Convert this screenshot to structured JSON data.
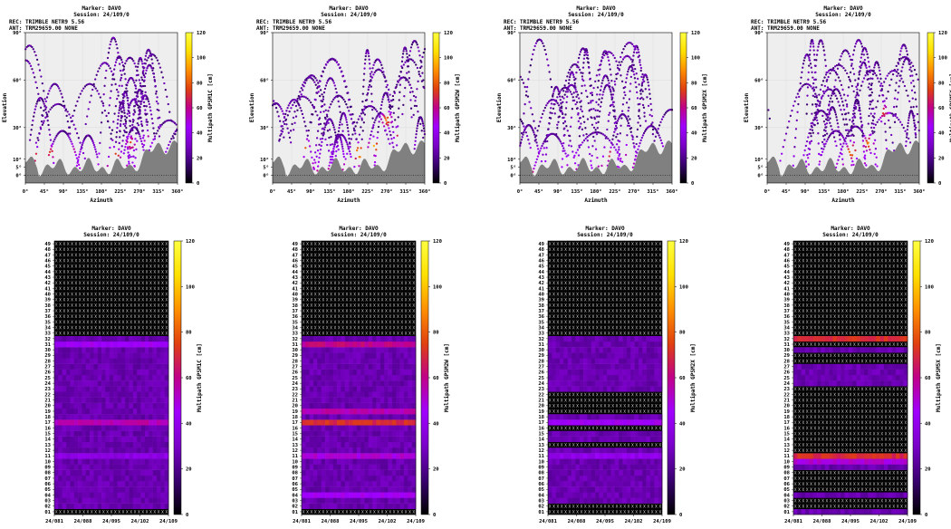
{
  "figure": {
    "skyplot_title_lines": [
      "Marker: DAVO",
      "Session: 24/109/0"
    ],
    "skyplot_info_lines": [
      "REC: TRIMBLE NETR9          5.56",
      "ANT: TRM29659.00       NONE"
    ],
    "timeplot_title_lines": [
      "Marker: DAVO",
      "Session: 24/109/0"
    ],
    "colorbar_ticks": [
      "0",
      "20",
      "40",
      "60",
      "80",
      "100",
      "120"
    ],
    "colors": {
      "plot_background": "#eeeeee",
      "terrain_mask": "#808080",
      "no_data_cell": "#000000",
      "palette": [
        "#000000",
        "#3a0070",
        "#7a00c8",
        "#a000ff",
        "#c0008a",
        "#e04010",
        "#ff9000",
        "#ffe000",
        "#ffff40"
      ]
    }
  },
  "chart_data": [
    {
      "type": "scatter",
      "plot": "skyplot",
      "signal": "GPSM1C",
      "xlabel": "Azimuth",
      "ylabel": "Elevation",
      "colorbar_label": "Multipath GPSM1C [cm]",
      "x_ticks": [
        "0°",
        "45°",
        "90°",
        "135°",
        "180°",
        "225°",
        "270°",
        "315°",
        "360°"
      ],
      "y_ticks": [
        "0°",
        "5°",
        "10°",
        "30°",
        "60°",
        "90°"
      ],
      "xlim": [
        0,
        360
      ],
      "ylim": [
        -5,
        90
      ],
      "colorbar_range": [
        0,
        120
      ],
      "hot_spots": [
        {
          "azimuth": 20,
          "elevation": 12,
          "value": 90
        },
        {
          "azimuth": 60,
          "elevation": 14,
          "value": 80
        },
        {
          "azimuth": 110,
          "elevation": 15,
          "value": 70
        },
        {
          "azimuth": 215,
          "elevation": 12,
          "value": 85
        },
        {
          "azimuth": 250,
          "elevation": 20,
          "value": 80
        },
        {
          "azimuth": 290,
          "elevation": 22,
          "value": 70
        }
      ]
    },
    {
      "type": "scatter",
      "plot": "skyplot",
      "signal": "GPSM2W",
      "xlabel": "Azimuth",
      "ylabel": "Elevation",
      "colorbar_label": "Multipath GPSM2W [cm]",
      "x_ticks": [
        "0°",
        "45°",
        "90°",
        "135°",
        "180°",
        "225°",
        "270°",
        "315°",
        "360°"
      ],
      "y_ticks": [
        "0°",
        "5°",
        "10°",
        "30°",
        "60°",
        "90°"
      ],
      "xlim": [
        0,
        360
      ],
      "ylim": [
        -5,
        90
      ],
      "colorbar_range": [
        0,
        120
      ],
      "hot_spots": [
        {
          "azimuth": 15,
          "elevation": 14,
          "value": 110
        },
        {
          "azimuth": 75,
          "elevation": 18,
          "value": 90
        },
        {
          "azimuth": 205,
          "elevation": 14,
          "value": 110
        },
        {
          "azimuth": 240,
          "elevation": 18,
          "value": 100
        },
        {
          "azimuth": 270,
          "elevation": 35,
          "value": 90
        },
        {
          "azimuth": 300,
          "elevation": 25,
          "value": 80
        }
      ]
    },
    {
      "type": "scatter",
      "plot": "skyplot",
      "signal": "GPSM2X",
      "xlabel": "Azimuth",
      "ylabel": "Elevation",
      "colorbar_label": "Multipath GPSM2X [cm]",
      "x_ticks": [
        "0°",
        "45°",
        "90°",
        "135°",
        "180°",
        "225°",
        "270°",
        "315°",
        "360°"
      ],
      "y_ticks": [
        "0°",
        "5°",
        "10°",
        "30°",
        "60°",
        "90°"
      ],
      "xlim": [
        0,
        360
      ],
      "ylim": [
        -5,
        90
      ],
      "colorbar_range": [
        0,
        120
      ],
      "hot_spots": [
        {
          "azimuth": 15,
          "elevation": 13,
          "value": 80
        },
        {
          "azimuth": 90,
          "elevation": 14,
          "value": 60
        },
        {
          "azimuth": 210,
          "elevation": 13,
          "value": 80
        },
        {
          "azimuth": 255,
          "elevation": 15,
          "value": 70
        }
      ]
    },
    {
      "type": "scatter",
      "plot": "skyplot",
      "signal": "GPSM5X",
      "xlabel": "Azimuth",
      "ylabel": "Elevation",
      "colorbar_label": "Multipath GPSM5X [cm]",
      "x_ticks": [
        "0°",
        "45°",
        "90°",
        "135°",
        "180°",
        "225°",
        "270°",
        "315°",
        "360°"
      ],
      "y_ticks": [
        "0°",
        "5°",
        "10°",
        "30°",
        "60°",
        "90°"
      ],
      "xlim": [
        0,
        360
      ],
      "ylim": [
        -5,
        90
      ],
      "colorbar_range": [
        0,
        120
      ],
      "hot_spots": [
        {
          "azimuth": 15,
          "elevation": 13,
          "value": 90
        },
        {
          "azimuth": 200,
          "elevation": 15,
          "value": 100
        },
        {
          "azimuth": 240,
          "elevation": 20,
          "value": 90
        },
        {
          "azimuth": 275,
          "elevation": 40,
          "value": 80
        }
      ]
    },
    {
      "type": "heatmap",
      "plot": "timeplot",
      "signal": "GPSM1C",
      "colorbar_label": "Multipath GPSM1C [cm]",
      "x_ticks": [
        "24/081",
        "24/088",
        "24/095",
        "24/102",
        "24/109"
      ],
      "y_ticks": [
        "01",
        "02",
        "03",
        "04",
        "05",
        "06",
        "07",
        "08",
        "09",
        "10",
        "11",
        "12",
        "13",
        "14",
        "15",
        "16",
        "17",
        "18",
        "19",
        "20",
        "21",
        "22",
        "23",
        "24",
        "25",
        "26",
        "27",
        "28",
        "29",
        "30",
        "31",
        "32",
        "33",
        "34",
        "35",
        "36",
        "37",
        "38",
        "39",
        "40",
        "41",
        "42",
        "43",
        "44",
        "45",
        "46",
        "47",
        "48",
        "49"
      ],
      "colorbar_range": [
        0,
        120
      ],
      "no_data_prns": [
        1,
        33,
        34,
        35,
        36,
        37,
        38,
        39,
        40,
        41,
        42,
        43,
        44,
        45,
        46,
        47,
        48,
        49
      ],
      "prn_levels": {
        "17": 55,
        "31": 45,
        "11": 38
      }
    },
    {
      "type": "heatmap",
      "plot": "timeplot",
      "signal": "GPSM2W",
      "colorbar_label": "Multipath GPSM2W [cm]",
      "x_ticks": [
        "24/081",
        "24/088",
        "24/095",
        "24/102",
        "24/109"
      ],
      "y_ticks": [
        "01",
        "02",
        "03",
        "04",
        "05",
        "06",
        "07",
        "08",
        "09",
        "10",
        "11",
        "12",
        "13",
        "14",
        "15",
        "16",
        "17",
        "18",
        "19",
        "20",
        "21",
        "22",
        "23",
        "24",
        "25",
        "26",
        "27",
        "28",
        "29",
        "30",
        "31",
        "32",
        "33",
        "34",
        "35",
        "36",
        "37",
        "38",
        "39",
        "40",
        "41",
        "42",
        "43",
        "44",
        "45",
        "46",
        "47",
        "48",
        "49"
      ],
      "colorbar_range": [
        0,
        120
      ],
      "no_data_prns": [
        1,
        33,
        34,
        35,
        36,
        37,
        38,
        39,
        40,
        41,
        42,
        43,
        44,
        45,
        46,
        47,
        48,
        49
      ],
      "prn_levels": {
        "17": 70,
        "19": 55,
        "31": 60,
        "11": 50,
        "4": 45
      }
    },
    {
      "type": "heatmap",
      "plot": "timeplot",
      "signal": "GPSM2X",
      "colorbar_label": "Multipath GPSM2X [cm]",
      "x_ticks": [
        "24/081",
        "24/088",
        "24/095",
        "24/102",
        "24/109"
      ],
      "y_ticks": [
        "01",
        "02",
        "03",
        "04",
        "05",
        "06",
        "07",
        "08",
        "09",
        "10",
        "11",
        "12",
        "13",
        "14",
        "15",
        "16",
        "17",
        "18",
        "19",
        "20",
        "21",
        "22",
        "23",
        "24",
        "25",
        "26",
        "27",
        "28",
        "29",
        "30",
        "31",
        "32",
        "33",
        "34",
        "35",
        "36",
        "37",
        "38",
        "39",
        "40",
        "41",
        "42",
        "43",
        "44",
        "45",
        "46",
        "47",
        "48",
        "49"
      ],
      "colorbar_range": [
        0,
        120
      ],
      "no_data_prns": [
        1,
        2,
        13,
        16,
        19,
        20,
        21,
        22,
        33,
        34,
        35,
        36,
        37,
        38,
        39,
        40,
        41,
        42,
        43,
        44,
        45,
        46,
        47,
        48,
        49
      ],
      "prn_levels": {
        "17": 45,
        "11": 40
      }
    },
    {
      "type": "heatmap",
      "plot": "timeplot",
      "signal": "GPSM5X",
      "colorbar_label": "Multipath GPSM5X [cm]",
      "x_ticks": [
        "24/081",
        "24/088",
        "24/095",
        "24/102",
        "24/109"
      ],
      "y_ticks": [
        "01",
        "02",
        "03",
        "04",
        "05",
        "06",
        "07",
        "08",
        "09",
        "10",
        "11",
        "12",
        "13",
        "14",
        "15",
        "16",
        "17",
        "18",
        "19",
        "20",
        "21",
        "22",
        "23",
        "24",
        "25",
        "26",
        "27",
        "28",
        "29",
        "30",
        "31",
        "32",
        "33",
        "34",
        "35",
        "36",
        "37",
        "38",
        "39",
        "40",
        "41",
        "42",
        "43",
        "44",
        "45",
        "46",
        "47",
        "48",
        "49"
      ],
      "colorbar_range": [
        0,
        120
      ],
      "no_data_prns": [
        2,
        3,
        5,
        6,
        7,
        8,
        12,
        13,
        14,
        15,
        16,
        17,
        18,
        19,
        20,
        21,
        22,
        23,
        28,
        29,
        31,
        33,
        34,
        35,
        36,
        37,
        38,
        39,
        40,
        41,
        42,
        43,
        44,
        45,
        46,
        47,
        48,
        49
      ],
      "prn_levels": {
        "32": 70,
        "11": 70,
        "10": 50
      }
    }
  ]
}
